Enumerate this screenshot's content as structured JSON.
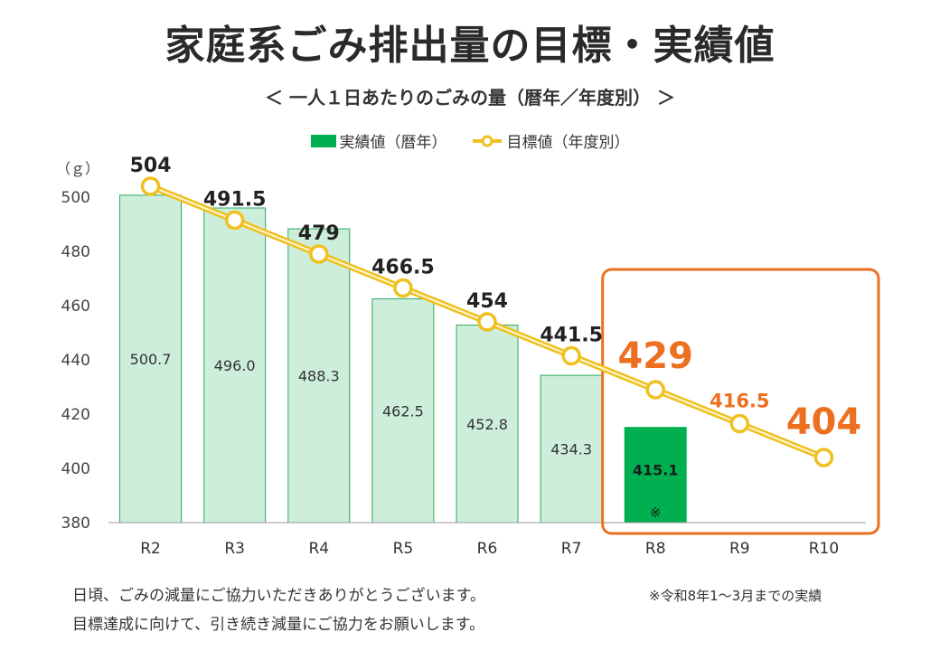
{
  "title": "家庭系ごみ排出量の目標・実績値",
  "subtitle": "＜ 一人１日あたりのごみの量（暦年／年度別） ＞",
  "legend": {
    "actual_label": "実績値（暦年）",
    "target_label": "目標値（年度別）"
  },
  "footer": {
    "line1": "日頃、ごみの減量にご協力いただきありがとうございます。",
    "line2": "目標達成に向けて、引き続き減量にご協力をお願いします。"
  },
  "footnote": "※令和8年1～3月までの実績",
  "chart_data": {
    "type": "bar",
    "yunit": "（ｇ）",
    "ylim": [
      380,
      510
    ],
    "yticks": [
      380,
      400,
      420,
      440,
      460,
      480,
      500
    ],
    "categories": [
      "R2",
      "R3",
      "R4",
      "R5",
      "R6",
      "R7",
      "R8",
      "R9",
      "R10"
    ],
    "series": [
      {
        "name": "実績値（暦年）",
        "type": "bar",
        "values": [
          500.7,
          496.0,
          488.3,
          462.5,
          452.8,
          434.3,
          415.1,
          null,
          null
        ],
        "labels": [
          "500.7",
          "496.0",
          "488.3",
          "462.5",
          "452.8",
          "434.3",
          "415.1",
          "",
          ""
        ],
        "color": "#cdeeda",
        "highlight_color": "#00b050",
        "highlight_index": 6,
        "highlight_note": "※"
      },
      {
        "name": "目標値（年度別）",
        "type": "line",
        "values": [
          504,
          491.5,
          479,
          466.5,
          454,
          441.5,
          429,
          416.5,
          404
        ],
        "labels": [
          "504",
          "491.5",
          "479",
          "466.5",
          "454",
          "441.5",
          "429",
          "416.5",
          "404"
        ],
        "color": "#f0c020"
      }
    ],
    "emphasis_color": "#ed7020",
    "emphasis_from_index": 6,
    "grid": false
  }
}
